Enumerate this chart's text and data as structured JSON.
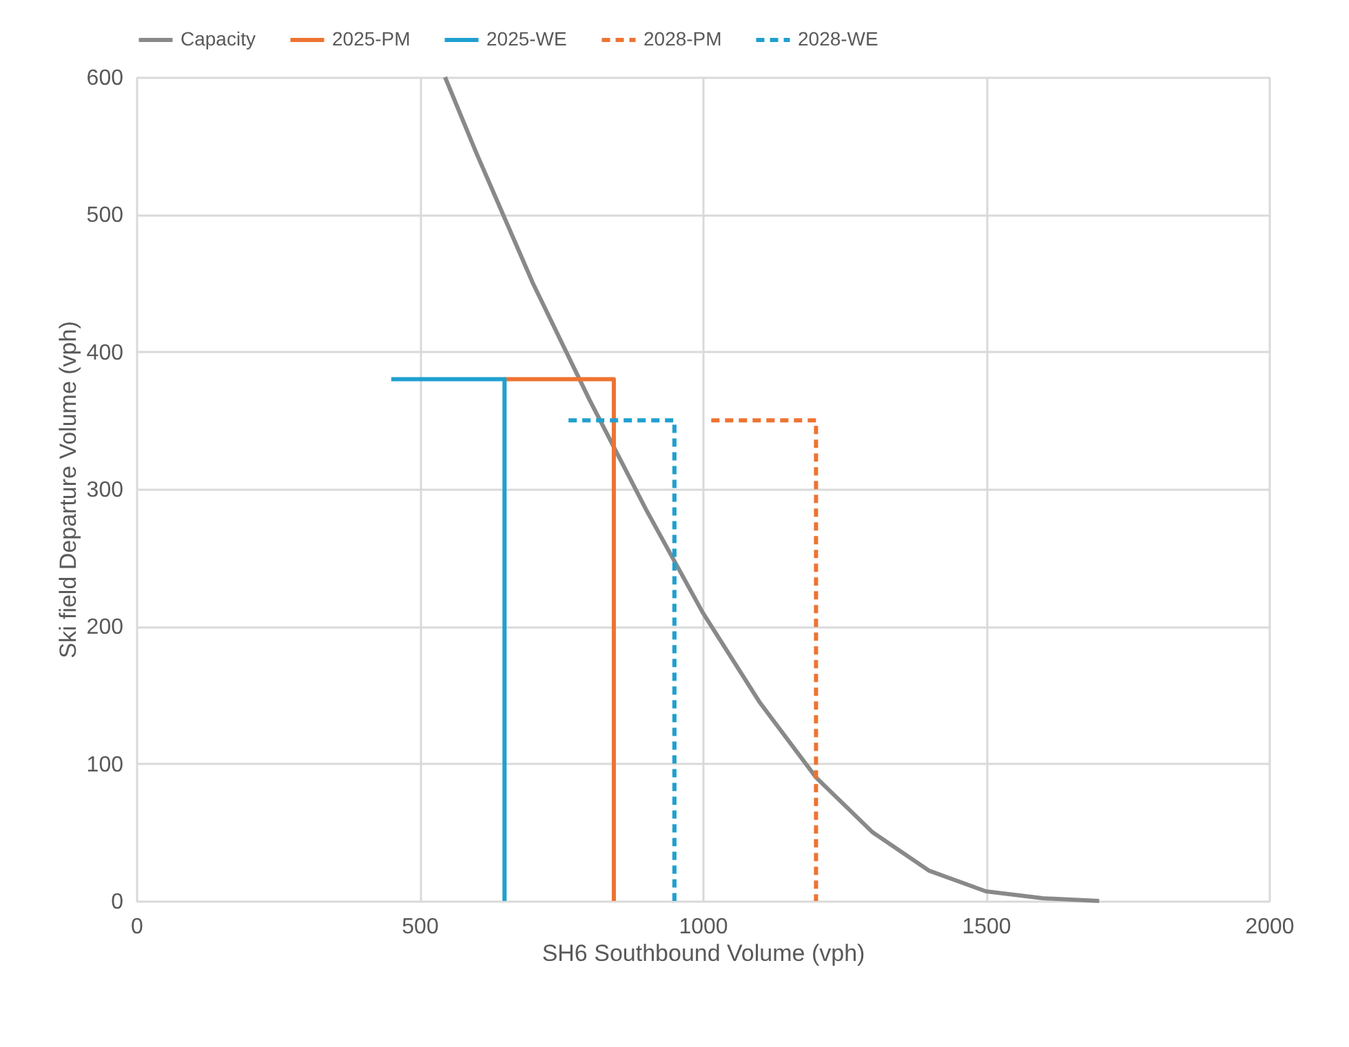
{
  "chart_data": {
    "type": "line",
    "xlabel": "SH6 Southbound Volume (vph)",
    "ylabel": "Ski field Departure Volume (vph)",
    "xlim": [
      0,
      2000
    ],
    "xticks": [
      0,
      500,
      1000,
      1500,
      2000
    ],
    "ylim": [
      0,
      600
    ],
    "yticks": [
      0,
      100,
      200,
      300,
      400,
      500,
      600
    ],
    "grid": true,
    "legend": "top",
    "marker": "none",
    "series": [
      {
        "name": "Capacity",
        "color": "#898989",
        "line_style": "solid",
        "x": [
          545,
          600,
          700,
          800,
          900,
          1000,
          1100,
          1200,
          1300,
          1400,
          1500,
          1600,
          1700
        ],
        "values": [
          600,
          545,
          450,
          365,
          285,
          210,
          145,
          90,
          50,
          22,
          7,
          2,
          0
        ]
      },
      {
        "name": "2025-PM",
        "color": "#ee7332",
        "line_style": "solid",
        "x": [
          650,
          843,
          843
        ],
        "values": [
          380,
          380,
          0
        ]
      },
      {
        "name": "2025-WE",
        "color": "#1fa0cf",
        "line_style": "solid",
        "x": [
          450,
          650,
          650
        ],
        "values": [
          380,
          380,
          0
        ]
      },
      {
        "name": "2028-PM",
        "color": "#ee7332",
        "line_style": "dashed",
        "x": [
          1015,
          1200,
          1200
        ],
        "values": [
          350,
          350,
          0
        ]
      },
      {
        "name": "2028-WE",
        "color": "#1fa0cf",
        "line_style": "dashed",
        "x": [
          763,
          950,
          950
        ],
        "values": [
          350,
          350,
          0
        ]
      }
    ]
  }
}
